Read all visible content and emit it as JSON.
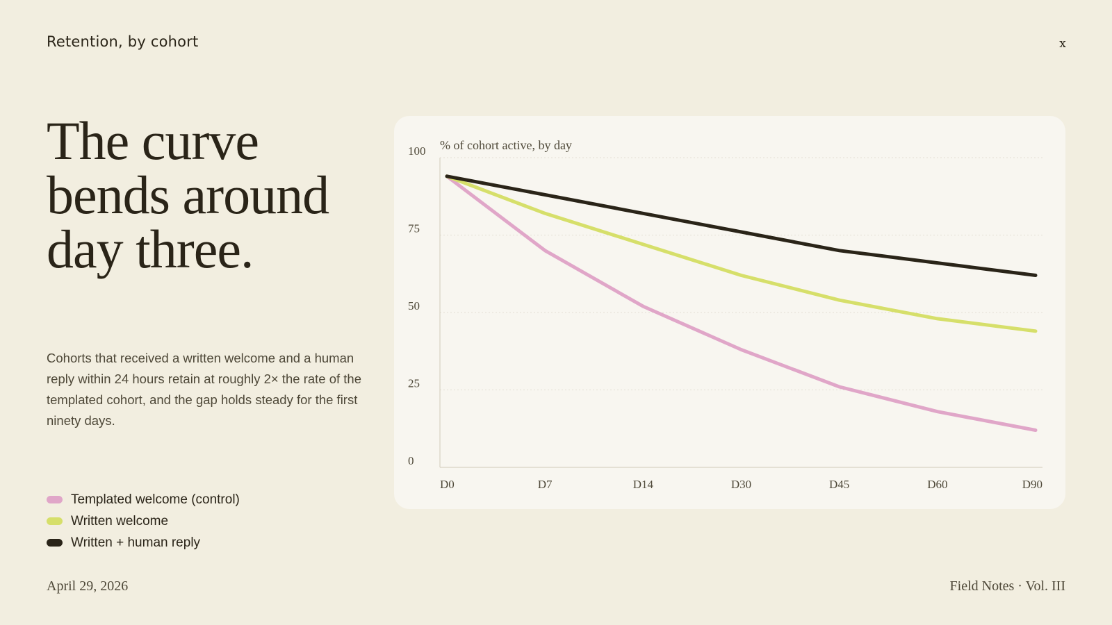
{
  "header": {
    "title": "Retention, by cohort",
    "close_label": "x"
  },
  "headline": "The curve bends around day three.",
  "body": "Cohorts that received a written welcome and a human reply within 24 hours retain at roughly 2× the rate of the templated cohort, and the gap holds steady for the first ninety days.",
  "footer": {
    "date": "April 29, 2026",
    "publication": "Field Notes · Vol. III"
  },
  "chart_data": {
    "type": "line",
    "title": "",
    "subtitle": "% of cohort active, by day",
    "xlabel": "",
    "ylabel": "",
    "categories": [
      "D0",
      "D7",
      "D14",
      "D30",
      "D45",
      "D60",
      "D90"
    ],
    "ylim": [
      0,
      100
    ],
    "yticks": [
      0,
      25,
      50,
      75,
      100
    ],
    "ytick_labels": [
      "0",
      "25",
      "50",
      "75",
      "100"
    ],
    "grid": true,
    "legend": "bottom-left, outside",
    "series": [
      {
        "name": "Templated welcome (control)",
        "color": "#e0a6c8",
        "values": [
          94,
          70,
          52,
          38,
          26,
          18,
          12
        ]
      },
      {
        "name": "Written welcome",
        "color": "#d6df6a",
        "values": [
          94,
          82,
          72,
          62,
          54,
          48,
          44
        ]
      },
      {
        "name": "Written + human reply",
        "color": "#2a2418",
        "values": [
          94,
          88,
          82,
          76,
          70,
          66,
          62
        ]
      }
    ]
  }
}
